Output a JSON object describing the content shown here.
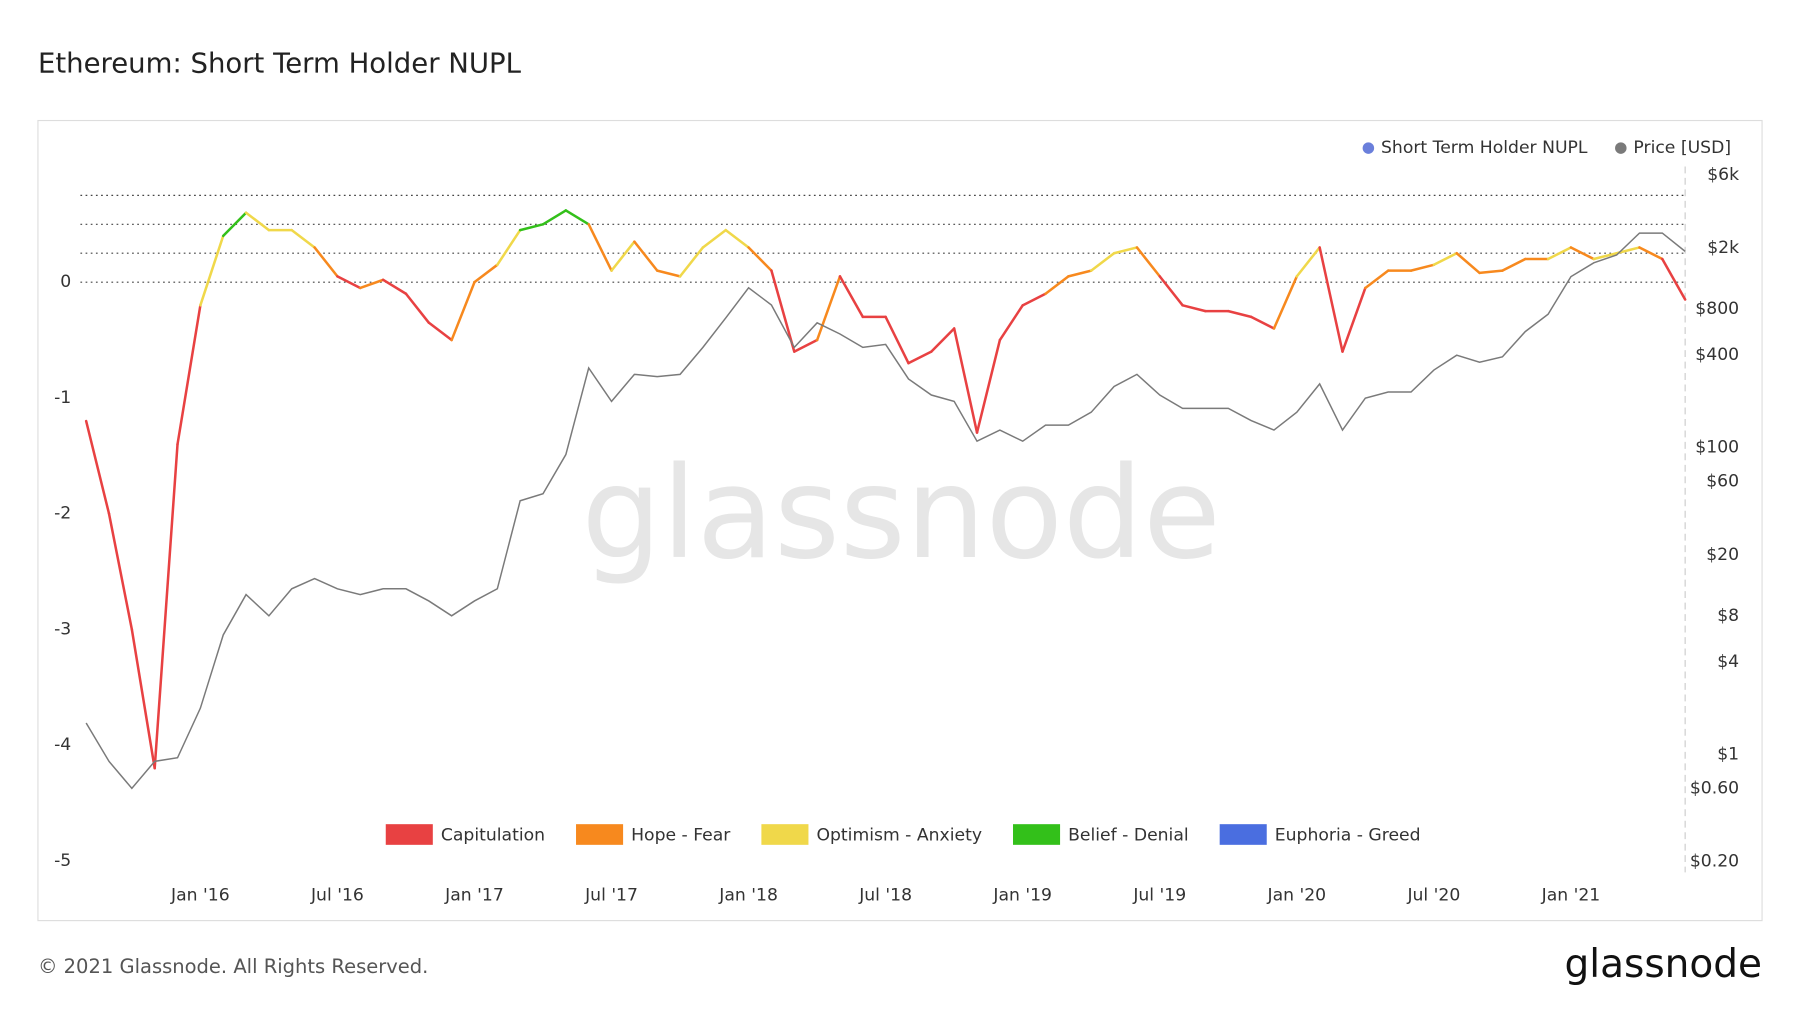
{
  "chart_data": {
    "type": "line",
    "title": "Ethereum: Short Term Holder NUPL",
    "watermark": "glassnode",
    "footer": "© 2021 Glassnode. All Rights Reserved.",
    "logo": "glassnode",
    "x": [
      "2015-08",
      "2015-09",
      "2015-10",
      "2015-11",
      "2015-12",
      "2016-01",
      "2016-02",
      "2016-03",
      "2016-04",
      "2016-05",
      "2016-06",
      "2016-07",
      "2016-08",
      "2016-09",
      "2016-10",
      "2016-11",
      "2016-12",
      "2017-01",
      "2017-02",
      "2017-03",
      "2017-04",
      "2017-05",
      "2017-06",
      "2017-07",
      "2017-08",
      "2017-09",
      "2017-10",
      "2017-11",
      "2017-12",
      "2018-01",
      "2018-02",
      "2018-03",
      "2018-04",
      "2018-05",
      "2018-06",
      "2018-07",
      "2018-08",
      "2018-09",
      "2018-10",
      "2018-11",
      "2018-12",
      "2019-01",
      "2019-02",
      "2019-03",
      "2019-04",
      "2019-05",
      "2019-06",
      "2019-07",
      "2019-08",
      "2019-09",
      "2019-10",
      "2019-11",
      "2019-12",
      "2020-01",
      "2020-02",
      "2020-03",
      "2020-04",
      "2020-05",
      "2020-06",
      "2020-07",
      "2020-08",
      "2020-09",
      "2020-10",
      "2020-11",
      "2020-12",
      "2021-01",
      "2021-02",
      "2021-03",
      "2021-04",
      "2021-05",
      "2021-06"
    ],
    "xlim": [
      "2015-08",
      "2021-06"
    ],
    "xticks": [
      {
        "value": "2016-01",
        "label": "Jan '16"
      },
      {
        "value": "2016-07",
        "label": "Jul '16"
      },
      {
        "value": "2017-01",
        "label": "Jan '17"
      },
      {
        "value": "2017-07",
        "label": "Jul '17"
      },
      {
        "value": "2018-01",
        "label": "Jan '18"
      },
      {
        "value": "2018-07",
        "label": "Jul '18"
      },
      {
        "value": "2019-01",
        "label": "Jan '19"
      },
      {
        "value": "2019-07",
        "label": "Jul '19"
      },
      {
        "value": "2020-01",
        "label": "Jan '20"
      },
      {
        "value": "2020-07",
        "label": "Jul '20"
      },
      {
        "value": "2021-01",
        "label": "Jan '21"
      }
    ],
    "ylim": [
      -5.1,
      1
    ],
    "yticks": [
      -5,
      -4,
      -3,
      -2,
      -1,
      0
    ],
    "y2lim": [
      0.17,
      6800
    ],
    "y2log": true,
    "y2ticks": [
      {
        "value": 0.2,
        "label": "$0.20"
      },
      {
        "value": 0.6,
        "label": "$0.60"
      },
      {
        "value": 1,
        "label": "$1"
      },
      {
        "value": 4,
        "label": "$4"
      },
      {
        "value": 8,
        "label": "$8"
      },
      {
        "value": 20,
        "label": "$20"
      },
      {
        "value": 60,
        "label": "$60"
      },
      {
        "value": 100,
        "label": "$100"
      },
      {
        "value": 400,
        "label": "$400"
      },
      {
        "value": 800,
        "label": "$800"
      },
      {
        "value": 2000,
        "label": "$2k"
      },
      {
        "value": 6000,
        "label": "$6k"
      }
    ],
    "hlines": [
      0,
      0.25,
      0.5,
      0.75
    ],
    "zones": [
      {
        "name": "Capitulation",
        "color": "#e84142"
      },
      {
        "name": "Hope - Fear",
        "color": "#f7891e"
      },
      {
        "name": "Optimism - Anxiety",
        "color": "#f0d84a"
      },
      {
        "name": "Belief - Denial",
        "color": "#33c01a"
      },
      {
        "name": "Euphoria - Greed",
        "color": "#4a6ee0"
      }
    ],
    "series": [
      {
        "name": "Short Term Holder NUPL",
        "color": "#6a7fdb",
        "zone_colored": true,
        "values": [
          -1.2,
          -2.0,
          -3.0,
          -4.2,
          -1.4,
          -0.2,
          0.4,
          0.6,
          0.45,
          0.45,
          0.3,
          0.05,
          -0.05,
          0.02,
          -0.1,
          -0.35,
          -0.5,
          0.0,
          0.15,
          0.45,
          0.5,
          0.62,
          0.5,
          0.1,
          0.35,
          0.1,
          0.05,
          0.3,
          0.45,
          0.3,
          0.1,
          -0.6,
          -0.5,
          0.05,
          -0.3,
          -0.3,
          -0.7,
          -0.6,
          -0.4,
          -1.3,
          -0.5,
          -0.2,
          -0.1,
          0.05,
          0.1,
          0.25,
          0.3,
          0.05,
          -0.2,
          -0.25,
          -0.25,
          -0.3,
          -0.4,
          0.05,
          0.3,
          -0.6,
          -0.05,
          0.1,
          0.1,
          0.15,
          0.25,
          0.08,
          0.1,
          0.2,
          0.2,
          0.3,
          0.2,
          0.25,
          0.3,
          0.2,
          -0.15
        ]
      },
      {
        "name": "Price [USD]",
        "color": "#7a7a7a",
        "axis": "y2",
        "values": [
          1.6,
          0.9,
          0.6,
          0.9,
          0.95,
          2,
          6,
          11,
          8,
          12,
          14,
          12,
          11,
          12,
          12,
          10,
          8,
          10,
          12,
          45,
          50,
          90,
          330,
          200,
          300,
          290,
          300,
          450,
          700,
          1100,
          850,
          450,
          650,
          550,
          450,
          470,
          280,
          220,
          200,
          110,
          130,
          110,
          140,
          140,
          170,
          250,
          300,
          220,
          180,
          180,
          180,
          150,
          130,
          170,
          260,
          130,
          210,
          230,
          230,
          320,
          400,
          360,
          390,
          570,
          740,
          1300,
          1600,
          1800,
          2500,
          2500,
          1900
        ]
      }
    ]
  }
}
